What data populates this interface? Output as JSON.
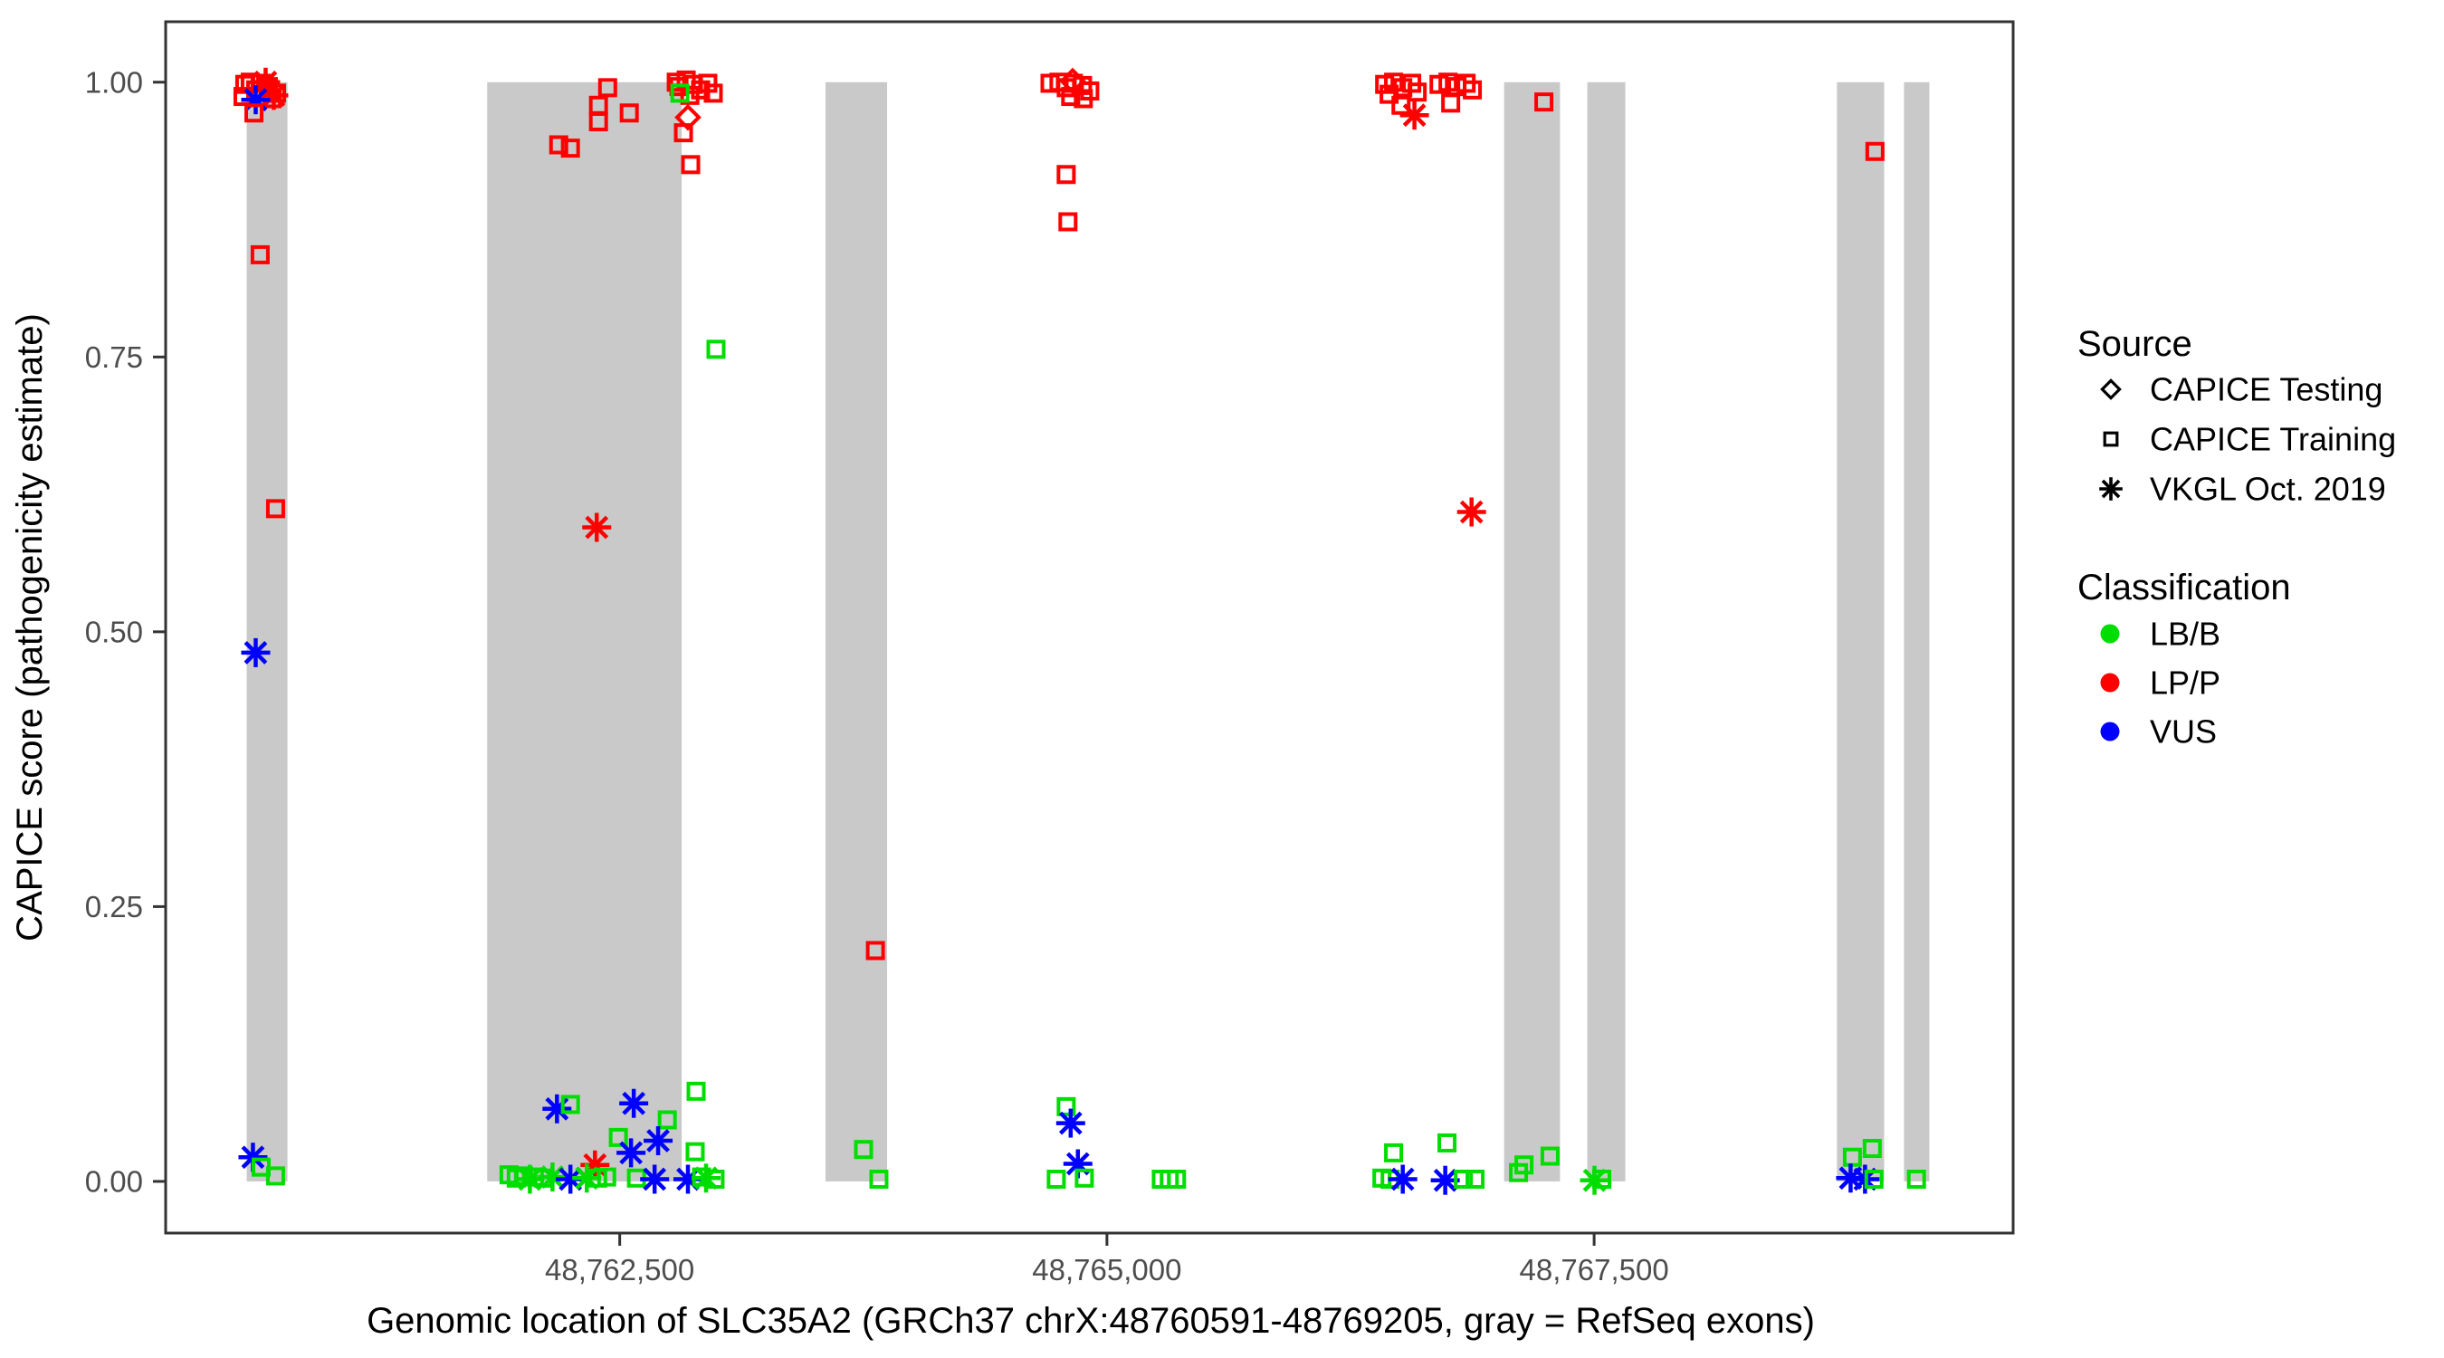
{
  "chart_data": {
    "type": "scatter",
    "title": "",
    "xlabel": "Genomic location of SLC35A2 (GRCh37 chrX:48760591-48769205, gray = RefSeq exons)",
    "ylabel": "CAPICE score (pathogenicity estimate)",
    "xlim": [
      48760170,
      48769650
    ],
    "ylim": [
      -0.047,
      1.055
    ],
    "grid": false,
    "x_ticks": [
      {
        "value": 48762500,
        "label": "48,762,500"
      },
      {
        "value": 48765000,
        "label": "48,765,000"
      },
      {
        "value": 48767500,
        "label": "48,767,500"
      }
    ],
    "y_ticks": [
      {
        "value": 0.0,
        "label": "0.00"
      },
      {
        "value": 0.25,
        "label": "0.25"
      },
      {
        "value": 0.5,
        "label": "0.50"
      },
      {
        "value": 0.75,
        "label": "0.75"
      },
      {
        "value": 1.0,
        "label": "1.00"
      }
    ],
    "exon_note": "gray bands = RefSeq exons, drawn from score 0 to 1",
    "exons": [
      {
        "start": 48760586,
        "end": 48760795
      },
      {
        "start": 48761820,
        "end": 48762818
      },
      {
        "start": 48763556,
        "end": 48763872
      },
      {
        "start": 48767038,
        "end": 48767325
      },
      {
        "start": 48767465,
        "end": 48767660
      },
      {
        "start": 48768746,
        "end": 48768988
      },
      {
        "start": 48769090,
        "end": 48769220
      }
    ],
    "colors": {
      "LB/B": "#00dd00",
      "LP/P": "#ff0000",
      "VUS": "#0000ff",
      "exon": "#c9c9c9",
      "axis": "#333333",
      "tick_text": "#4d4d4d"
    },
    "source_shapes": {
      "testing": "diamond",
      "training": "square",
      "vkgl": "asterisk"
    },
    "legend": {
      "source_title": "Source",
      "source_items": [
        {
          "label": "CAPICE Testing",
          "shape": "diamond"
        },
        {
          "label": "CAPICE Training",
          "shape": "square"
        },
        {
          "label": "VKGL Oct. 2019",
          "shape": "asterisk"
        }
      ],
      "classification_title": "Classification",
      "classification_items": [
        {
          "label": "LB/B",
          "color": "#00dd00"
        },
        {
          "label": "LP/P",
          "color": "#ff0000"
        },
        {
          "label": "VUS",
          "color": "#0000ff"
        }
      ],
      "position": "right"
    },
    "points": [
      [
        48760576,
        0.998,
        "LP/P",
        "training"
      ],
      [
        48760604,
        1.0,
        "LP/P",
        "training"
      ],
      [
        48760632,
        0.993,
        "LP/P",
        "training"
      ],
      [
        48760660,
        0.999,
        "LP/P",
        "training"
      ],
      [
        48760697,
        0.996,
        "LP/P",
        "training"
      ],
      [
        48760739,
        0.99,
        "LP/P",
        "training"
      ],
      [
        48760716,
        0.985,
        "LP/P",
        "training"
      ],
      [
        48760567,
        0.987,
        "LP/P",
        "training"
      ],
      [
        48760683,
        1.0,
        "LP/P",
        "vkgl"
      ],
      [
        48760725,
        0.988,
        "LP/P",
        "vkgl"
      ],
      [
        48760632,
        0.984,
        "VUS",
        "vkgl"
      ],
      [
        48760623,
        0.972,
        "LP/P",
        "training"
      ],
      [
        48760655,
        0.843,
        "LP/P",
        "training"
      ],
      [
        48760734,
        0.612,
        "LP/P",
        "training"
      ],
      [
        48760632,
        0.481,
        "VUS",
        "vkgl"
      ],
      [
        48760618,
        0.022,
        "VUS",
        "vkgl"
      ],
      [
        48760660,
        0.013,
        "LB/B",
        "training"
      ],
      [
        48760734,
        0.005,
        "LB/B",
        "training"
      ],
      [
        48762438,
        0.995,
        "LP/P",
        "training"
      ],
      [
        48762391,
        0.979,
        "LP/P",
        "training"
      ],
      [
        48762391,
        0.964,
        "LP/P",
        "training"
      ],
      [
        48762549,
        0.972,
        "LP/P",
        "training"
      ],
      [
        48762187,
        0.943,
        "LP/P",
        "training"
      ],
      [
        48762247,
        0.94,
        "LP/P",
        "training"
      ],
      [
        48762790,
        1.0,
        "LP/P",
        "training"
      ],
      [
        48762804,
        0.996,
        "LP/P",
        "training"
      ],
      [
        48762841,
        1.002,
        "LP/P",
        "training"
      ],
      [
        48762878,
        0.998,
        "LP/P",
        "training"
      ],
      [
        48762915,
        0.993,
        "LP/P",
        "training"
      ],
      [
        48762952,
        0.999,
        "LP/P",
        "training"
      ],
      [
        48762980,
        0.99,
        "LP/P",
        "training"
      ],
      [
        48762860,
        0.988,
        "LP/P",
        "training"
      ],
      [
        48762809,
        0.99,
        "LB/B",
        "training"
      ],
      [
        48762850,
        0.968,
        "LP/P",
        "testing"
      ],
      [
        48762827,
        0.954,
        "LP/P",
        "training"
      ],
      [
        48762864,
        0.925,
        "LP/P",
        "training"
      ],
      [
        48762382,
        0.595,
        "LP/P",
        "vkgl"
      ],
      [
        48762994,
        0.757,
        "LB/B",
        "training"
      ],
      [
        48762178,
        0.066,
        "VUS",
        "vkgl"
      ],
      [
        48762247,
        0.07,
        "LB/B",
        "training"
      ],
      [
        48762572,
        0.071,
        "VUS",
        "vkgl"
      ],
      [
        48762892,
        0.082,
        "LB/B",
        "training"
      ],
      [
        48762744,
        0.056,
        "LB/B",
        "training"
      ],
      [
        48762493,
        0.04,
        "LB/B",
        "training"
      ],
      [
        48762697,
        0.037,
        "VUS",
        "vkgl"
      ],
      [
        48762558,
        0.026,
        "VUS",
        "vkgl"
      ],
      [
        48762887,
        0.027,
        "LB/B",
        "training"
      ],
      [
        48762373,
        0.015,
        "LP/P",
        "vkgl"
      ],
      [
        48761932,
        0.006,
        "LB/B",
        "training"
      ],
      [
        48761969,
        0.003,
        "LB/B",
        "training"
      ],
      [
        48762006,
        0.005,
        "LB/B",
        "training"
      ],
      [
        48762039,
        0.002,
        "LB/B",
        "vkgl"
      ],
      [
        48762062,
        0.004,
        "LB/B",
        "training"
      ],
      [
        48762108,
        0.003,
        "LB/B",
        "training"
      ],
      [
        48762155,
        0.004,
        "LB/B",
        "vkgl"
      ],
      [
        48762247,
        0.002,
        "VUS",
        "vkgl"
      ],
      [
        48762331,
        0.003,
        "LB/B",
        "vkgl"
      ],
      [
        48762387,
        0.003,
        "LB/B",
        "training"
      ],
      [
        48762433,
        0.004,
        "LB/B",
        "training"
      ],
      [
        48762586,
        0.003,
        "LB/B",
        "training"
      ],
      [
        48762679,
        0.002,
        "VUS",
        "vkgl"
      ],
      [
        48762850,
        0.002,
        "VUS",
        "vkgl"
      ],
      [
        48762943,
        0.003,
        "LB/B",
        "vkgl"
      ],
      [
        48762989,
        0.002,
        "LB/B",
        "training"
      ],
      [
        48762920,
        0.004,
        "LB/B",
        "training"
      ],
      [
        48763751,
        0.029,
        "LB/B",
        "training"
      ],
      [
        48763830,
        0.002,
        "LB/B",
        "training"
      ],
      [
        48763812,
        0.21,
        "LP/P",
        "training"
      ],
      [
        48764708,
        0.999,
        "LP/P",
        "training"
      ],
      [
        48764754,
        1.0,
        "LP/P",
        "training"
      ],
      [
        48764791,
        0.995,
        "LP/P",
        "training"
      ],
      [
        48764828,
        0.999,
        "LP/P",
        "training"
      ],
      [
        48764875,
        0.997,
        "LP/P",
        "training"
      ],
      [
        48764912,
        0.992,
        "LP/P",
        "training"
      ],
      [
        48764814,
        0.987,
        "LP/P",
        "training"
      ],
      [
        48764879,
        0.985,
        "LP/P",
        "training"
      ],
      [
        48764824,
        1.001,
        "LP/P",
        "testing"
      ],
      [
        48764791,
        0.916,
        "LP/P",
        "training"
      ],
      [
        48764800,
        0.873,
        "LP/P",
        "training"
      ],
      [
        48764791,
        0.068,
        "LB/B",
        "training"
      ],
      [
        48764814,
        0.053,
        "VUS",
        "vkgl"
      ],
      [
        48764851,
        0.016,
        "VUS",
        "vkgl"
      ],
      [
        48764740,
        0.002,
        "LB/B",
        "training"
      ],
      [
        48764884,
        0.003,
        "LB/B",
        "training"
      ],
      [
        48765279,
        0.002,
        "LB/B",
        "training"
      ],
      [
        48765320,
        0.002,
        "LB/B",
        "training"
      ],
      [
        48765357,
        0.002,
        "LB/B",
        "training"
      ],
      [
        48766425,
        0.998,
        "LP/P",
        "training"
      ],
      [
        48766471,
        1.0,
        "LP/P",
        "training"
      ],
      [
        48766518,
        0.995,
        "LP/P",
        "training"
      ],
      [
        48766564,
        0.999,
        "LP/P",
        "training"
      ],
      [
        48766592,
        0.991,
        "LP/P",
        "training"
      ],
      [
        48766448,
        0.989,
        "LP/P",
        "training"
      ],
      [
        48766509,
        0.979,
        "LP/P",
        "training"
      ],
      [
        48766578,
        0.97,
        "LP/P",
        "vkgl"
      ],
      [
        48766704,
        0.998,
        "LP/P",
        "training"
      ],
      [
        48766750,
        1.0,
        "LP/P",
        "training"
      ],
      [
        48766796,
        0.996,
        "LP/P",
        "training"
      ],
      [
        48766843,
        0.999,
        "LP/P",
        "training"
      ],
      [
        48766875,
        0.993,
        "LP/P",
        "training"
      ],
      [
        48766764,
        0.981,
        "LP/P",
        "training"
      ],
      [
        48766871,
        0.609,
        "LP/P",
        "vkgl"
      ],
      [
        48767242,
        0.982,
        "LP/P",
        "training"
      ],
      [
        48768941,
        0.937,
        "LP/P",
        "training"
      ],
      [
        48766471,
        0.026,
        "LB/B",
        "training"
      ],
      [
        48766411,
        0.003,
        "LB/B",
        "training"
      ],
      [
        48766453,
        0.002,
        "LB/B",
        "training"
      ],
      [
        48766518,
        0.002,
        "VUS",
        "vkgl"
      ],
      [
        48766745,
        0.035,
        "LB/B",
        "training"
      ],
      [
        48766736,
        0.001,
        "VUS",
        "vkgl"
      ],
      [
        48766829,
        0.002,
        "LB/B",
        "training"
      ],
      [
        48766889,
        0.002,
        "LB/B",
        "training"
      ],
      [
        48767112,
        0.008,
        "LB/B",
        "training"
      ],
      [
        48767140,
        0.015,
        "LB/B",
        "training"
      ],
      [
        48767274,
        0.023,
        "LB/B",
        "training"
      ],
      [
        48767502,
        0.001,
        "LB/B",
        "vkgl"
      ],
      [
        48767539,
        0.002,
        "LB/B",
        "training"
      ],
      [
        48768825,
        0.022,
        "LB/B",
        "training"
      ],
      [
        48768927,
        0.03,
        "LB/B",
        "training"
      ],
      [
        48768816,
        0.003,
        "VUS",
        "vkgl"
      ],
      [
        48768890,
        0.002,
        "VUS",
        "vkgl"
      ],
      [
        48768936,
        0.002,
        "LB/B",
        "training"
      ],
      [
        48769154,
        0.002,
        "LB/B",
        "training"
      ]
    ]
  }
}
